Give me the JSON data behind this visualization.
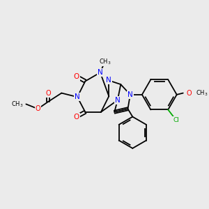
{
  "bg_color": "#ebebeb",
  "atom_colors": {
    "N": "#0000ff",
    "O": "#ff0000",
    "Cl": "#00aa00",
    "C": "#000000"
  },
  "bond_color": "#000000"
}
